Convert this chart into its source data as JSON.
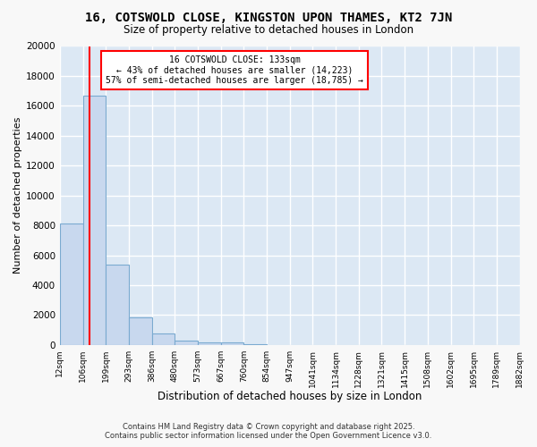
{
  "title": "16, COTSWOLD CLOSE, KINGSTON UPON THAMES, KT2 7JN",
  "subtitle": "Size of property relative to detached houses in London",
  "xlabel": "Distribution of detached houses by size in London",
  "ylabel": "Number of detached properties",
  "bar_color": "#c8d8ee",
  "bar_edge_color": "#7aaad0",
  "background_color": "#dce8f4",
  "fig_background_color": "#f8f8f8",
  "grid_color": "#ffffff",
  "bin_edges": [
    12,
    106,
    199,
    293,
    386,
    480,
    573,
    667,
    760,
    854,
    947,
    1041,
    1134,
    1228,
    1321,
    1415,
    1508,
    1602,
    1695,
    1789,
    1882
  ],
  "bar_heights": [
    8100,
    16700,
    5400,
    1850,
    750,
    300,
    200,
    155,
    55,
    0,
    0,
    0,
    0,
    0,
    0,
    0,
    0,
    0,
    0,
    0
  ],
  "red_line_x": 133,
  "ylim": [
    0,
    20000
  ],
  "yticks": [
    0,
    2000,
    4000,
    6000,
    8000,
    10000,
    12000,
    14000,
    16000,
    18000,
    20000
  ],
  "xtick_labels": [
    "12sqm",
    "106sqm",
    "199sqm",
    "293sqm",
    "386sqm",
    "480sqm",
    "573sqm",
    "667sqm",
    "760sqm",
    "854sqm",
    "947sqm",
    "1041sqm",
    "1134sqm",
    "1228sqm",
    "1321sqm",
    "1415sqm",
    "1508sqm",
    "1602sqm",
    "1695sqm",
    "1789sqm",
    "1882sqm"
  ],
  "annotation_title": "16 COTSWOLD CLOSE: 133sqm",
  "annotation_line1": "← 43% of detached houses are smaller (14,223)",
  "annotation_line2": "57% of semi-detached houses are larger (18,785) →",
  "footer_line1": "Contains HM Land Registry data © Crown copyright and database right 2025.",
  "footer_line2": "Contains public sector information licensed under the Open Government Licence v3.0."
}
